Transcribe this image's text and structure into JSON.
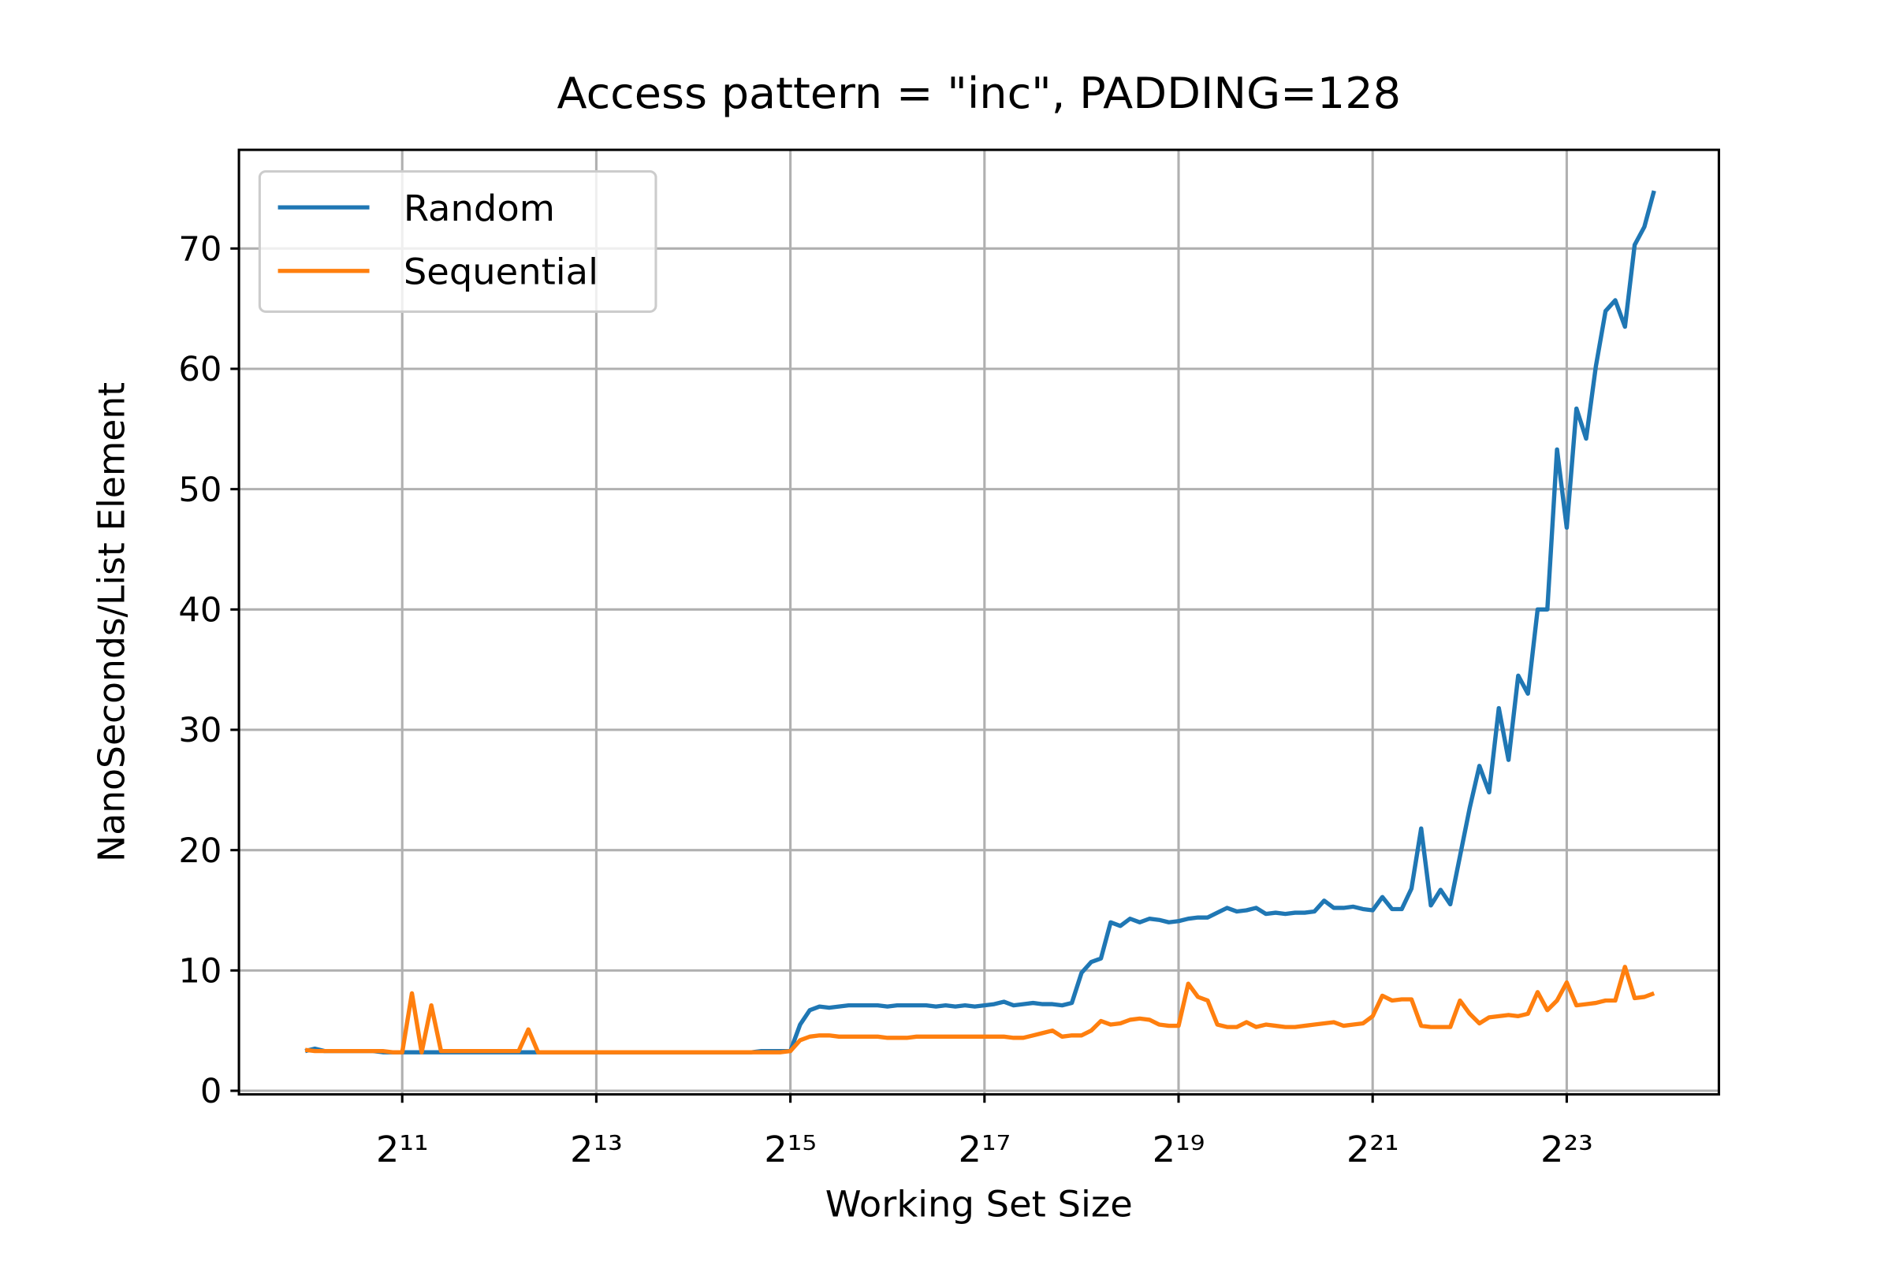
{
  "chart_data": {
    "type": "line",
    "title": "Access pattern = \"inc\", PADDING=128",
    "xlabel": "Working Set Size",
    "ylabel": "NanoSeconds/List Element",
    "log_x": true,
    "log_base": 2,
    "grid": true,
    "legend": "upper left",
    "xlim": [
      638,
      24870000
    ],
    "ylim": [
      -0.3,
      78.2
    ],
    "xticks": [
      {
        "value": 2048,
        "label": "2¹¹"
      },
      {
        "value": 8192,
        "label": "2¹³"
      },
      {
        "value": 32768,
        "label": "2¹⁵"
      },
      {
        "value": 131072,
        "label": "2¹⁷"
      },
      {
        "value": 524288,
        "label": "2¹⁹"
      },
      {
        "value": 2097152,
        "label": "2²¹"
      },
      {
        "value": 8388608,
        "label": "2²³"
      }
    ],
    "yticks": [
      0,
      10,
      20,
      30,
      40,
      50,
      60,
      70
    ],
    "x": [
      1024,
      1097,
      1176,
      1261,
      1351,
      1448,
      1552,
      1663,
      1783,
      1911,
      2048,
      2195,
      2353,
      2521,
      2702,
      2896,
      3104,
      3327,
      3566,
      3822,
      4096,
      4390,
      4705,
      5043,
      5405,
      5793,
      6208,
      6654,
      7132,
      7643,
      8192,
      8780,
      9410,
      10086,
      10809,
      11585,
      12417,
      13308,
      14263,
      15287,
      16384,
      17560,
      18820,
      20171,
      21619,
      23170,
      24834,
      26616,
      28526,
      30574,
      32768,
      35120,
      37641,
      40342,
      43238,
      46341,
      49668,
      53232,
      57053,
      61147,
      65536,
      70240,
      75281,
      80684,
      86475,
      92682,
      99334,
      106464,
      114104,
      122295,
      131072,
      140479,
      150562,
      161369,
      172951,
      185364,
      198668,
      212927,
      228209,
      244589,
      262144,
      280959,
      301124,
      322737,
      345901,
      370728,
      397336,
      425854,
      456419,
      489178,
      524288,
      561918,
      602249,
      645474,
      691802,
      741455,
      794672,
      851708,
      912838,
      978356,
      1048576,
      1123836,
      1204498,
      1290948,
      1383604,
      1482910,
      1589344,
      1703417,
      1825677,
      1956713,
      2097152,
      2247672,
      2408995,
      2581897,
      2767209,
      2965821,
      3178688,
      3406833,
      3651354,
      3913426,
      4194304,
      4495344,
      4817990,
      5163793,
      5534417,
      5931642,
      6357376,
      6813667,
      7302707,
      7826852,
      8388608,
      8990689,
      9635980,
      10327587,
      11068835,
      11863283,
      12714752,
      13627334,
      14605414,
      15653704
    ],
    "series": [
      {
        "name": "Random",
        "color": "#1f77b4",
        "values": [
          3.3,
          3.5,
          3.3,
          3.3,
          3.3,
          3.3,
          3.3,
          3.3,
          3.2,
          3.2,
          3.2,
          3.2,
          3.2,
          3.2,
          3.2,
          3.2,
          3.2,
          3.2,
          3.2,
          3.2,
          3.2,
          3.2,
          3.2,
          3.2,
          3.2,
          3.2,
          3.2,
          3.2,
          3.2,
          3.2,
          3.2,
          3.2,
          3.2,
          3.2,
          3.2,
          3.2,
          3.2,
          3.2,
          3.2,
          3.2,
          3.2,
          3.2,
          3.2,
          3.2,
          3.2,
          3.2,
          3.2,
          3.3,
          3.3,
          3.3,
          3.3,
          5.5,
          6.7,
          7.0,
          6.9,
          7.0,
          7.1,
          7.1,
          7.1,
          7.1,
          7.0,
          7.1,
          7.1,
          7.1,
          7.1,
          7.0,
          7.1,
          7.0,
          7.1,
          7.0,
          7.1,
          7.2,
          7.4,
          7.1,
          7.2,
          7.3,
          7.2,
          7.2,
          7.1,
          7.3,
          9.8,
          10.7,
          11.0,
          14.0,
          13.7,
          14.3,
          14.0,
          14.3,
          14.2,
          14.0,
          14.1,
          14.3,
          14.4,
          14.4,
          14.8,
          15.2,
          14.9,
          15.0,
          15.2,
          14.7,
          14.8,
          14.7,
          14.8,
          14.8,
          14.9,
          15.8,
          15.2,
          15.2,
          15.3,
          15.1,
          15.0,
          16.1,
          15.1,
          15.1,
          16.8,
          21.8,
          15.4,
          16.7,
          15.5,
          19.5,
          23.5,
          27.0,
          24.8,
          31.8,
          27.5,
          34.5,
          33.0,
          40.0,
          40.0,
          53.3,
          46.8,
          56.7,
          54.2,
          60.2,
          64.8,
          65.7,
          63.5,
          70.3,
          71.8,
          74.8
        ]
      },
      {
        "name": "Sequential",
        "color": "#ff7f0e",
        "values": [
          3.4,
          3.3,
          3.3,
          3.3,
          3.3,
          3.3,
          3.3,
          3.3,
          3.3,
          3.2,
          3.2,
          8.1,
          3.2,
          7.1,
          3.3,
          3.3,
          3.3,
          3.3,
          3.3,
          3.3,
          3.3,
          3.3,
          3.3,
          5.1,
          3.2,
          3.2,
          3.2,
          3.2,
          3.2,
          3.2,
          3.2,
          3.2,
          3.2,
          3.2,
          3.2,
          3.2,
          3.2,
          3.2,
          3.2,
          3.2,
          3.2,
          3.2,
          3.2,
          3.2,
          3.2,
          3.2,
          3.2,
          3.2,
          3.2,
          3.2,
          3.3,
          4.2,
          4.5,
          4.6,
          4.6,
          4.5,
          4.5,
          4.5,
          4.5,
          4.5,
          4.4,
          4.4,
          4.4,
          4.5,
          4.5,
          4.5,
          4.5,
          4.5,
          4.5,
          4.5,
          4.5,
          4.5,
          4.5,
          4.4,
          4.4,
          4.6,
          4.8,
          5.0,
          4.5,
          4.6,
          4.6,
          5.0,
          5.8,
          5.5,
          5.6,
          5.9,
          6.0,
          5.9,
          5.5,
          5.4,
          5.4,
          8.9,
          7.8,
          7.5,
          5.5,
          5.3,
          5.3,
          5.7,
          5.3,
          5.5,
          5.4,
          5.3,
          5.3,
          5.4,
          5.5,
          5.6,
          5.7,
          5.4,
          5.5,
          5.6,
          6.2,
          7.9,
          7.5,
          7.6,
          7.6,
          5.4,
          5.3,
          5.3,
          5.3,
          7.5,
          6.4,
          5.6,
          6.1,
          6.2,
          6.3,
          6.2,
          6.4,
          8.2,
          6.7,
          7.5,
          9.0,
          7.1,
          7.2,
          7.3,
          7.5,
          7.5,
          10.3,
          7.7,
          7.8,
          8.1
        ]
      }
    ]
  }
}
